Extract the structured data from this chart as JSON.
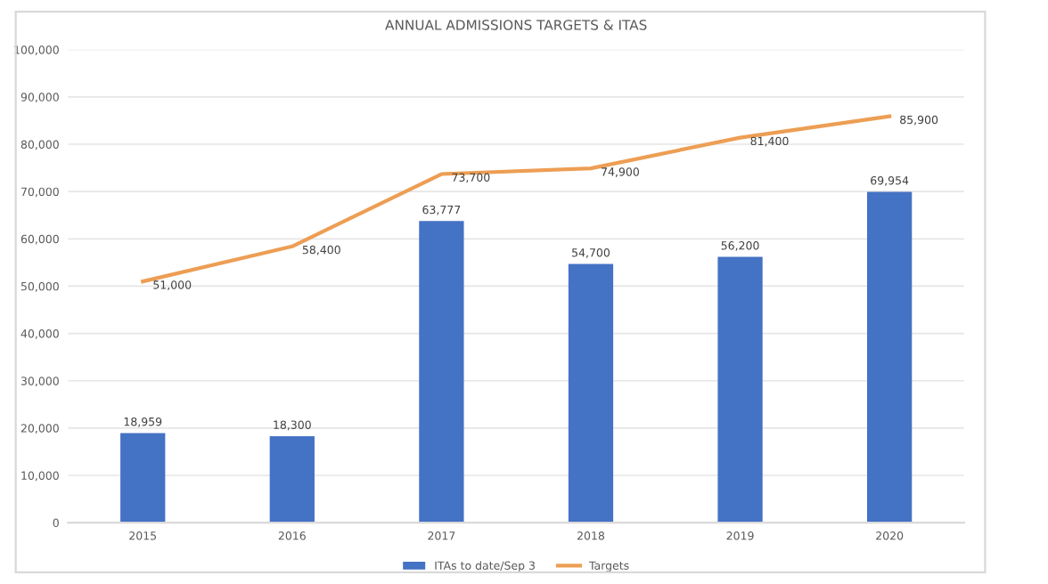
{
  "chart_data": {
    "type": "bar",
    "title": "ANNUAL ADMISSIONS TARGETS & ITAS",
    "categories": [
      "2015",
      "2016",
      "2017",
      "2018",
      "2019",
      "2020"
    ],
    "series": [
      {
        "name": "ITAs to date/Sep 3",
        "color": "#4472c4",
        "values": [
          18959,
          18300,
          63777,
          54700,
          56200,
          69954
        ],
        "value_labels": [
          "18,959",
          "18,300",
          "63,777",
          "54,700",
          "56,200",
          "69,954"
        ]
      },
      {
        "name": "Targets",
        "type": "line",
        "color": "#ed9e54",
        "values": [
          51000,
          58400,
          73700,
          74900,
          81400,
          85900
        ],
        "value_labels": [
          "51,000",
          "58,400",
          "73,700",
          "74,900",
          "81,400",
          "85,900"
        ]
      }
    ],
    "ylim": [
      0,
      100000
    ],
    "yticks": [
      {
        "value": 0,
        "label": "0"
      },
      {
        "value": 10000,
        "label": "10,000"
      },
      {
        "value": 20000,
        "label": "20,000"
      },
      {
        "value": 30000,
        "label": "30,000"
      },
      {
        "value": 40000,
        "label": "40,000"
      },
      {
        "value": 50000,
        "label": "50,000"
      },
      {
        "value": 60000,
        "label": "60,000"
      },
      {
        "value": 70000,
        "label": "70,000"
      },
      {
        "value": 80000,
        "label": "80,000"
      },
      {
        "value": 90000,
        "label": "90,000"
      },
      {
        "value": 100000,
        "label": "100,000"
      }
    ],
    "grid": "y",
    "legend": "bottom"
  }
}
